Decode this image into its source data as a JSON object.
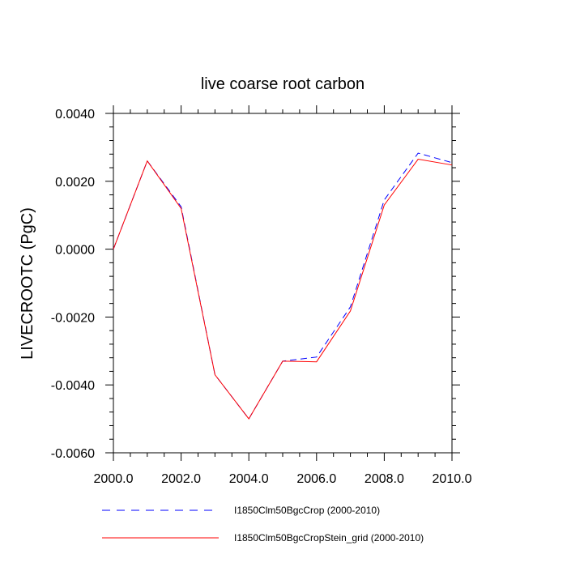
{
  "chart_data": {
    "type": "line",
    "title": "live coarse root carbon",
    "xlabel": "",
    "ylabel": "LIVECROOTC  (PgC)",
    "xlim": [
      2000,
      2010
    ],
    "ylim": [
      -0.006,
      0.004
    ],
    "x_ticks": [
      2000,
      2002,
      2004,
      2006,
      2008,
      2010
    ],
    "x_tick_labels": [
      "2000.0",
      "2002.0",
      "2004.0",
      "2006.0",
      "2008.0",
      "2010.0"
    ],
    "y_ticks": [
      0.004,
      0.002,
      0.0,
      -0.002,
      -0.004,
      -0.006
    ],
    "y_tick_labels": [
      "0.0040",
      "0.0020",
      "0.0000",
      "-0.0020",
      "-0.0040",
      "-0.0060"
    ],
    "x": [
      2000,
      2001,
      2002,
      2003,
      2004,
      2005,
      2006,
      2007,
      2008,
      2009,
      2010
    ],
    "series": [
      {
        "name": "I1850Clm50BgcCrop (2000-2010)",
        "color": "#0000ff",
        "style": "dashed",
        "values": [
          0.0,
          0.0026,
          0.00125,
          -0.0037,
          -0.005,
          -0.0033,
          -0.00318,
          -0.0017,
          0.00145,
          0.00283,
          0.00255
        ]
      },
      {
        "name": "I1850Clm50BgcCropStein_grid (2000-2010)",
        "color": "#ff0000",
        "style": "solid",
        "values": [
          0.0,
          0.0026,
          0.0012,
          -0.0037,
          -0.005,
          -0.0033,
          -0.00332,
          -0.00182,
          0.0013,
          0.00265,
          0.00248
        ]
      }
    ],
    "grid": false,
    "legend_position": "bottom"
  }
}
